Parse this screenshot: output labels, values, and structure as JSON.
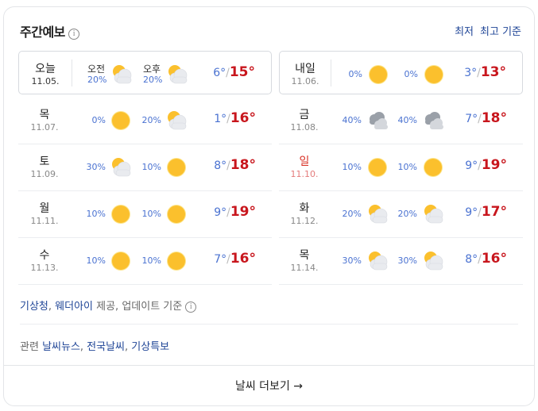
{
  "header": {
    "title": "주간예보",
    "info_icon": "info-icon",
    "sort_low": "최저",
    "sort_high": "최고 기준"
  },
  "today": {
    "day": "오늘",
    "date": "11.05.",
    "am_label": "오전",
    "am_pct": "20%",
    "am_icon": "partly-cloudy",
    "pm_label": "오후",
    "pm_pct": "20%",
    "pm_icon": "partly-cloudy",
    "low": "6°",
    "high": "15°"
  },
  "tomorrow": {
    "day": "내일",
    "date": "11.06.",
    "am_pct": "0%",
    "am_icon": "sunny",
    "pm_pct": "0%",
    "pm_icon": "sunny",
    "low": "3°",
    "high": "13°"
  },
  "days": [
    {
      "day": "목",
      "date": "11.07.",
      "am_pct": "0%",
      "am_icon": "sunny",
      "pm_pct": "20%",
      "pm_icon": "partly-cloudy",
      "low": "1°",
      "high": "16°"
    },
    {
      "day": "금",
      "date": "11.08.",
      "am_pct": "40%",
      "am_icon": "cloudy",
      "pm_pct": "40%",
      "pm_icon": "cloudy",
      "low": "7°",
      "high": "18°"
    },
    {
      "day": "토",
      "date": "11.09.",
      "am_pct": "30%",
      "am_icon": "partly-cloudy",
      "pm_pct": "10%",
      "pm_icon": "sunny",
      "low": "8°",
      "high": "18°"
    },
    {
      "day": "일",
      "date": "11.10.",
      "am_pct": "10%",
      "am_icon": "sunny",
      "pm_pct": "10%",
      "pm_icon": "sunny",
      "low": "9°",
      "high": "19°",
      "holiday": true
    },
    {
      "day": "월",
      "date": "11.11.",
      "am_pct": "10%",
      "am_icon": "sunny",
      "pm_pct": "10%",
      "pm_icon": "sunny",
      "low": "9°",
      "high": "19°"
    },
    {
      "day": "화",
      "date": "11.12.",
      "am_pct": "20%",
      "am_icon": "partly-cloudy",
      "pm_pct": "20%",
      "pm_icon": "partly-cloudy",
      "low": "9°",
      "high": "17°"
    },
    {
      "day": "수",
      "date": "11.13.",
      "am_pct": "10%",
      "am_icon": "sunny",
      "pm_pct": "10%",
      "pm_icon": "sunny",
      "low": "7°",
      "high": "16°"
    },
    {
      "day": "목",
      "date": "11.14.",
      "am_pct": "30%",
      "am_icon": "partly-cloudy",
      "pm_pct": "30%",
      "pm_icon": "partly-cloudy",
      "low": "8°",
      "high": "16°"
    }
  ],
  "source": {
    "provider1": "기상청",
    "sep": ", ",
    "provider2": "웨더아이",
    "rest": " 제공, 업데이트 기준"
  },
  "related": {
    "label": "관련 ",
    "links": [
      "날씨뉴스",
      ", ",
      "전국날씨",
      ", ",
      "기상특보"
    ]
  },
  "more": {
    "label": "날씨 더보기",
    "arrow": "→"
  },
  "colors": {
    "low": "#4a72d1",
    "high": "#c8161d",
    "link": "#1e4496",
    "sun": "#fbc02d"
  }
}
